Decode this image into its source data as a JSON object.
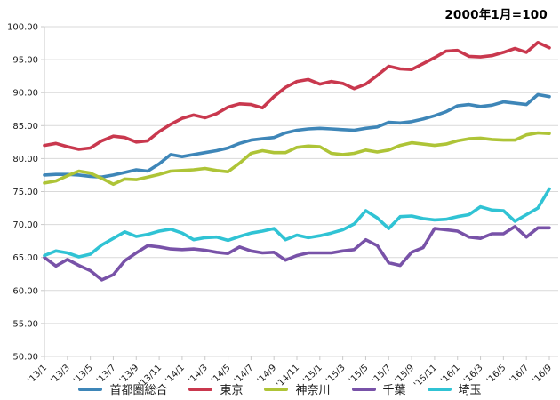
{
  "title": "2000年1月=100",
  "colors": {
    "background": "#ffffff",
    "grid": "#d9d9d9",
    "axis": "#c9c9c9",
    "text": "#1a1a1a",
    "series_blue": "#3E86B8",
    "series_red": "#C9384E",
    "series_green": "#AEC437",
    "series_purple": "#7852A8",
    "series_cyan": "#30C3D4"
  },
  "chart_data": {
    "type": "line",
    "title": "2000年1月=100",
    "xlabel": "",
    "ylabel": "",
    "ylim": [
      50,
      100
    ],
    "y_tick_step": 5,
    "grid": "horizontal",
    "legend_position": "bottom",
    "n_points": 45,
    "points_per_label": 2,
    "y_tick_labels": [
      "100.00",
      "95.00",
      "90.00",
      "85.00",
      "80.00",
      "75.00",
      "70.00",
      "65.00",
      "60.00",
      "55.00",
      "50.00"
    ],
    "x_tick_labels": [
      "'13/1",
      "'13/3",
      "'13/5",
      "'13/7",
      "'13/9",
      "'13/11",
      "'14/1",
      "'14/3",
      "'14/5",
      "'14/7",
      "'14/9",
      "'14/11",
      "'15/1",
      "'15/3",
      "'15/5",
      "'15/7",
      "'15/9",
      "'15/11",
      "'16/1",
      "'16/3",
      "'16/5",
      "'16/7",
      "'16/9"
    ],
    "series": [
      {
        "name": "首都圏総合",
        "color": "#3E86B8",
        "values": [
          77.5,
          77.6,
          77.6,
          77.5,
          77.3,
          77.2,
          77.5,
          77.9,
          78.3,
          78.1,
          79.2,
          80.6,
          80.3,
          80.6,
          80.9,
          81.2,
          81.6,
          82.3,
          82.8,
          83.0,
          83.2,
          83.9,
          84.3,
          84.5,
          84.6,
          84.5,
          84.4,
          84.3,
          84.6,
          84.8,
          85.5,
          85.4,
          85.6,
          86.0,
          86.5,
          87.1,
          88.0,
          88.2,
          87.9,
          88.1,
          88.6,
          88.4,
          88.2,
          89.7,
          89.4
        ]
      },
      {
        "name": "東京",
        "color": "#C9384E",
        "values": [
          82.0,
          82.3,
          81.8,
          81.4,
          81.6,
          82.7,
          83.4,
          83.2,
          82.5,
          82.7,
          84.1,
          85.2,
          86.1,
          86.6,
          86.2,
          86.8,
          87.8,
          88.3,
          88.2,
          87.7,
          89.4,
          90.8,
          91.7,
          92.0,
          91.3,
          91.7,
          91.4,
          90.6,
          91.3,
          92.6,
          94.0,
          93.6,
          93.5,
          94.4,
          95.3,
          96.3,
          96.4,
          95.5,
          95.4,
          95.6,
          96.1,
          96.7,
          96.1,
          97.6,
          96.8
        ]
      },
      {
        "name": "神奈川",
        "color": "#AEC437",
        "values": [
          76.3,
          76.6,
          77.4,
          78.1,
          77.8,
          77.0,
          76.1,
          76.9,
          76.8,
          77.2,
          77.6,
          78.1,
          78.2,
          78.3,
          78.5,
          78.2,
          78.0,
          79.3,
          80.8,
          81.2,
          80.9,
          80.9,
          81.7,
          81.9,
          81.8,
          80.8,
          80.6,
          80.8,
          81.3,
          81.0,
          81.3,
          82.0,
          82.4,
          82.2,
          82.0,
          82.2,
          82.7,
          83.0,
          83.1,
          82.9,
          82.8,
          82.8,
          83.6,
          83.9,
          83.8
        ]
      },
      {
        "name": "千葉",
        "color": "#7852A8",
        "values": [
          65.0,
          63.7,
          64.7,
          63.8,
          63.0,
          61.6,
          62.4,
          64.5,
          65.7,
          66.8,
          66.6,
          66.3,
          66.2,
          66.3,
          66.1,
          65.8,
          65.6,
          66.6,
          66.0,
          65.7,
          65.8,
          64.6,
          65.3,
          65.7,
          65.7,
          65.7,
          66.0,
          66.2,
          67.7,
          66.8,
          64.2,
          63.8,
          65.8,
          66.5,
          69.4,
          69.2,
          69.0,
          68.1,
          67.9,
          68.6,
          68.6,
          69.7,
          68.1,
          69.5,
          69.5
        ]
      },
      {
        "name": "埼玉",
        "color": "#30C3D4",
        "values": [
          65.3,
          66.0,
          65.7,
          65.1,
          65.5,
          66.9,
          67.9,
          68.9,
          68.2,
          68.5,
          69.0,
          69.3,
          68.7,
          67.7,
          68.0,
          68.1,
          67.6,
          68.2,
          68.7,
          69.0,
          69.4,
          67.7,
          68.4,
          68.0,
          68.3,
          68.7,
          69.2,
          70.1,
          72.1,
          71.0,
          69.4,
          71.2,
          71.3,
          70.9,
          70.7,
          70.8,
          71.2,
          71.5,
          72.7,
          72.2,
          72.1,
          70.5,
          71.5,
          72.5,
          75.4
        ]
      }
    ]
  }
}
